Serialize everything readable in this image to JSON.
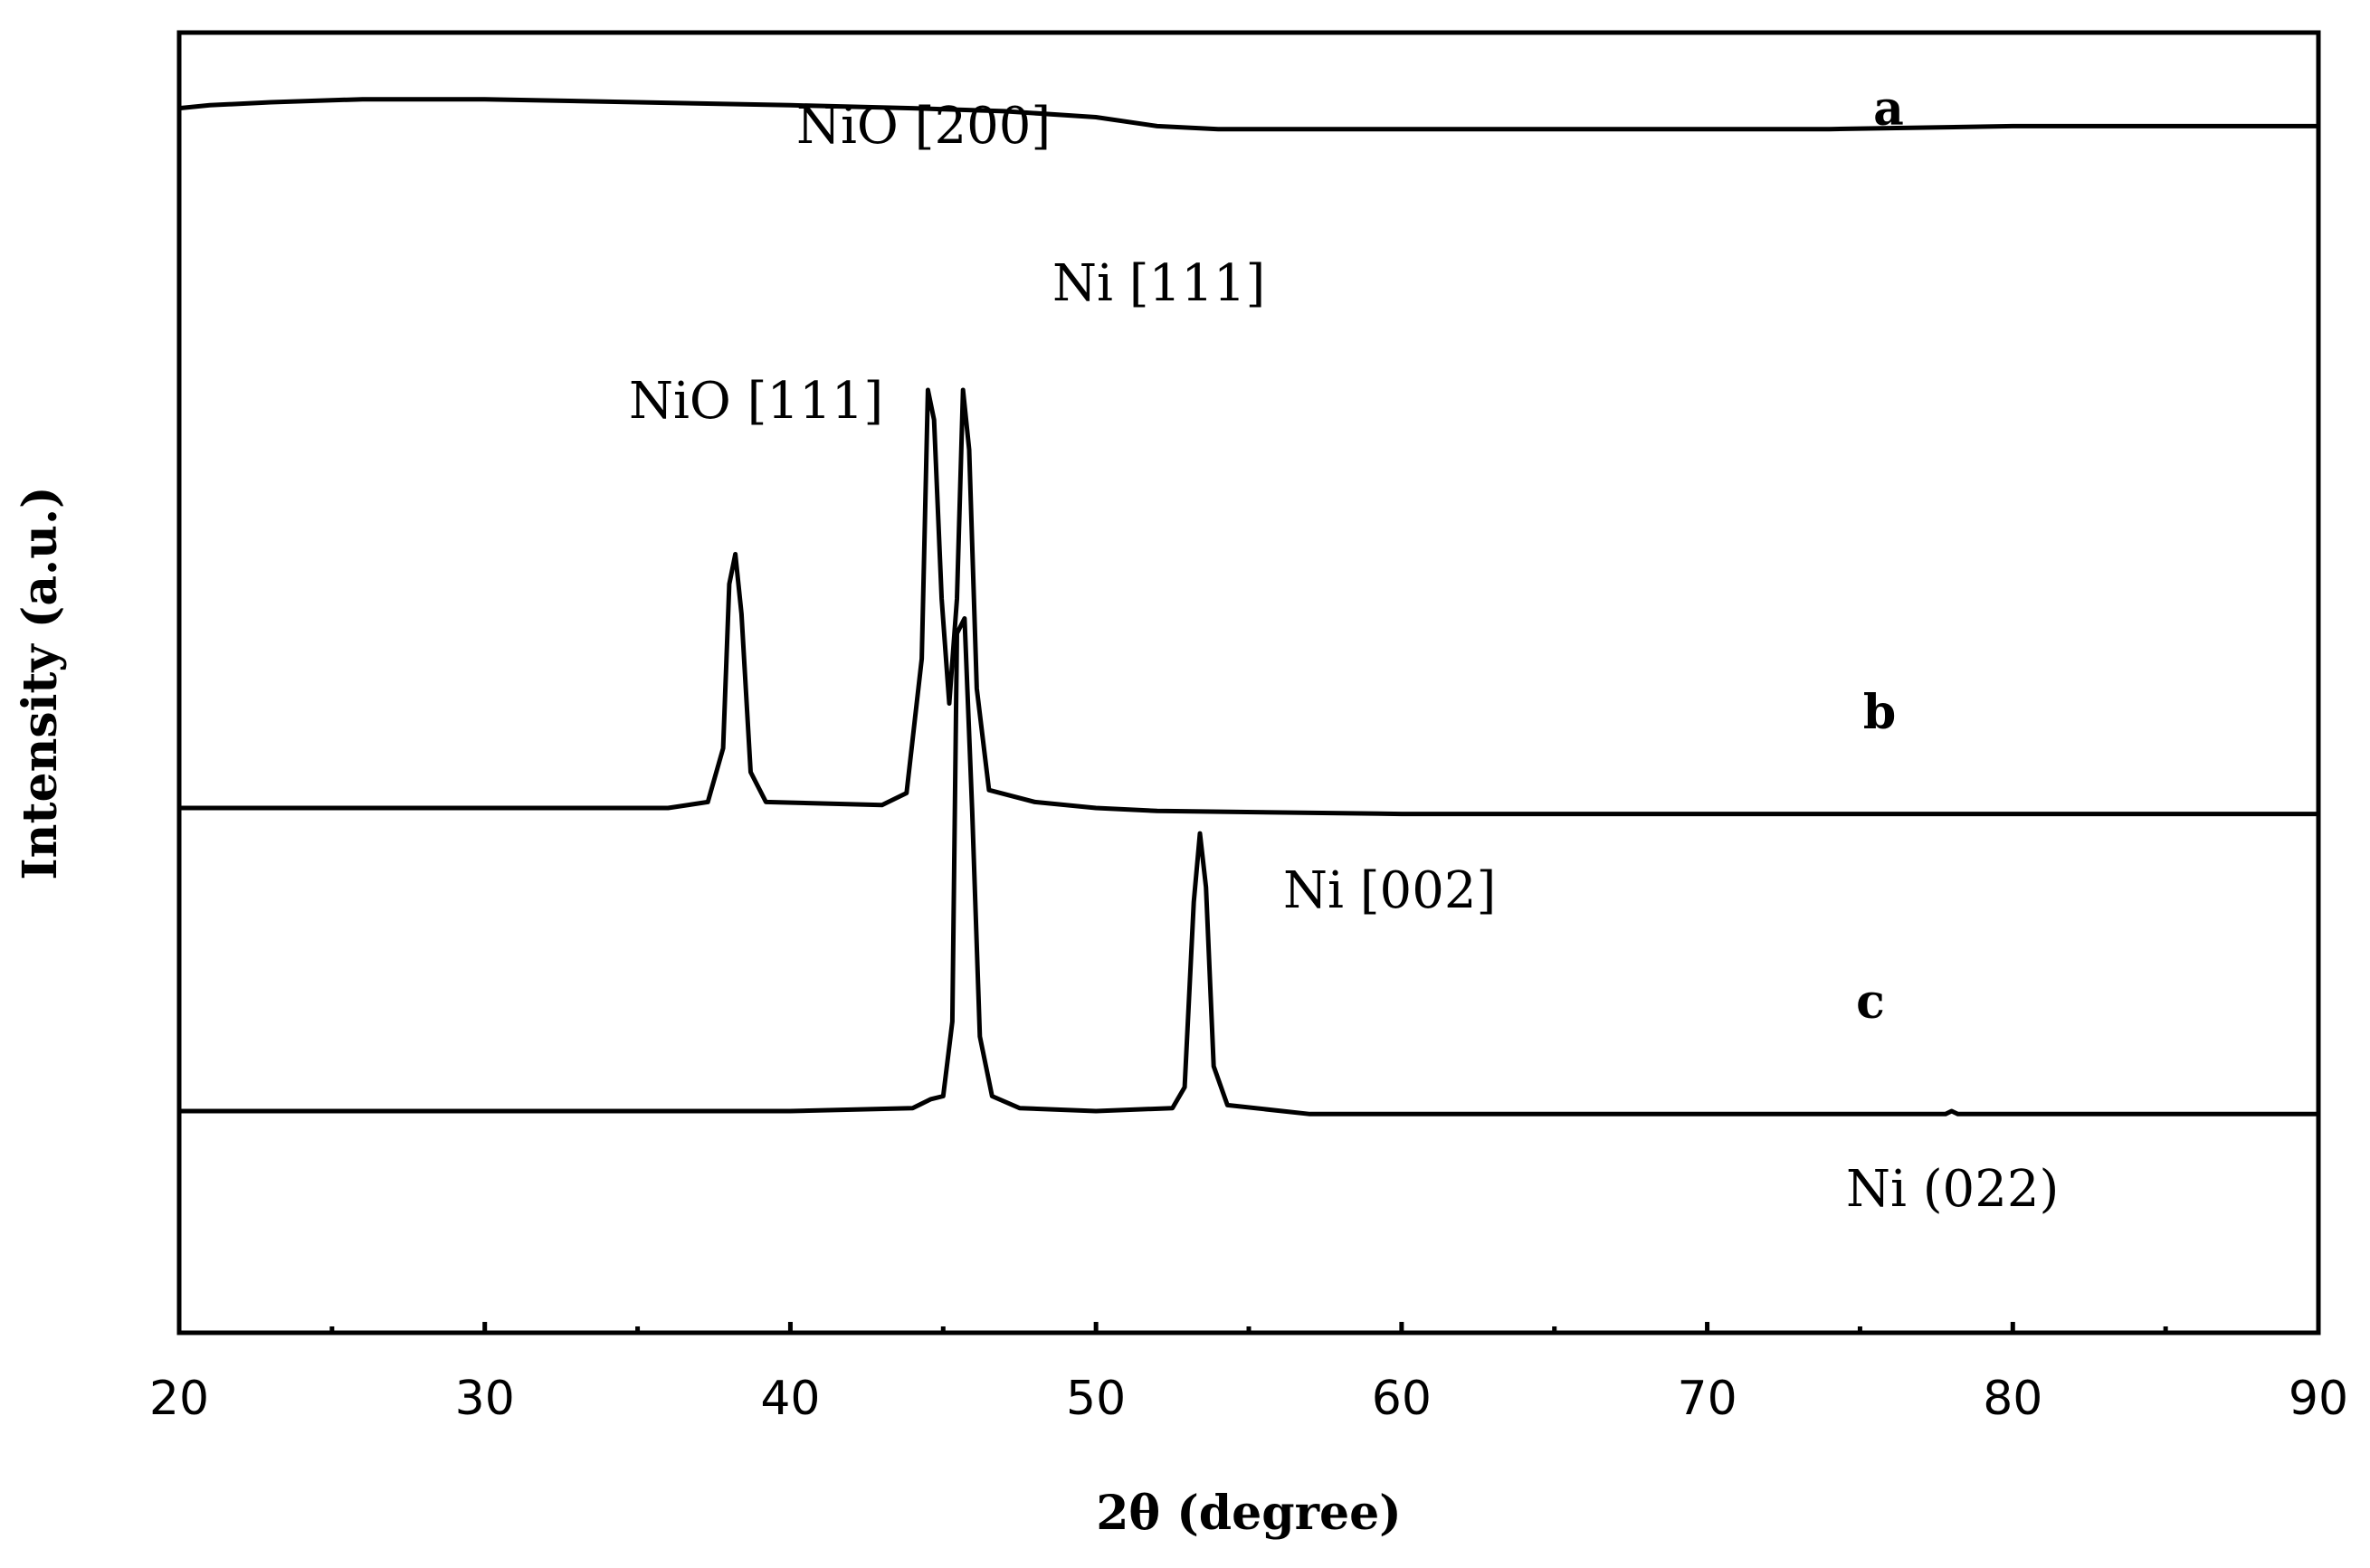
{
  "chart_data": {
    "type": "line",
    "xlabel": "2θ (degree)",
    "ylabel": "Intensity (a.u.)",
    "xlim": [
      20,
      90
    ],
    "x_ticks": [
      20,
      30,
      40,
      50,
      60,
      70,
      80,
      90
    ],
    "grid": false,
    "legend": "none",
    "series": [
      {
        "name": "a",
        "points": [
          [
            20,
            0.48
          ],
          [
            21,
            0.49
          ],
          [
            23,
            0.5
          ],
          [
            26,
            0.51
          ],
          [
            30,
            0.51
          ],
          [
            35,
            0.5
          ],
          [
            40,
            0.49
          ],
          [
            44,
            0.48
          ],
          [
            47,
            0.47
          ],
          [
            50,
            0.45
          ],
          [
            52,
            0.42
          ],
          [
            54,
            0.41
          ],
          [
            60,
            0.41
          ],
          [
            70,
            0.41
          ],
          [
            74,
            0.41
          ],
          [
            80,
            0.42
          ],
          [
            90,
            0.42
          ]
        ]
      },
      {
        "name": "b",
        "points": [
          [
            20,
            0.0
          ],
          [
            36,
            0.0
          ],
          [
            37.3,
            0.02
          ],
          [
            37.8,
            0.2
          ],
          [
            38.0,
            0.75
          ],
          [
            38.2,
            0.85
          ],
          [
            38.4,
            0.65
          ],
          [
            38.7,
            0.12
          ],
          [
            39.2,
            0.02
          ],
          [
            43,
            0.01
          ],
          [
            43.8,
            0.05
          ],
          [
            44.3,
            0.5
          ],
          [
            44.5,
            1.4
          ],
          [
            44.7,
            1.3
          ],
          [
            44.95,
            0.7
          ],
          [
            45.2,
            0.35
          ],
          [
            45.45,
            0.7
          ],
          [
            45.65,
            1.4
          ],
          [
            45.85,
            1.2
          ],
          [
            46.1,
            0.4
          ],
          [
            46.5,
            0.06
          ],
          [
            48,
            0.02
          ],
          [
            50,
            0.0
          ],
          [
            52,
            -0.01
          ],
          [
            60,
            -0.02
          ],
          [
            70,
            -0.02
          ],
          [
            80,
            -0.02
          ],
          [
            90,
            -0.02
          ]
        ]
      },
      {
        "name": "c",
        "points": [
          [
            20,
            0.0
          ],
          [
            40,
            0.0
          ],
          [
            44,
            0.01
          ],
          [
            44.6,
            0.04
          ],
          [
            45.0,
            0.05
          ],
          [
            45.3,
            0.3
          ],
          [
            45.45,
            1.6
          ],
          [
            45.7,
            1.65
          ],
          [
            45.95,
            1.0
          ],
          [
            46.2,
            0.25
          ],
          [
            46.6,
            0.05
          ],
          [
            47.5,
            0.01
          ],
          [
            50,
            0.0
          ],
          [
            52.5,
            0.01
          ],
          [
            52.9,
            0.08
          ],
          [
            53.2,
            0.7
          ],
          [
            53.4,
            0.93
          ],
          [
            53.6,
            0.75
          ],
          [
            53.85,
            0.15
          ],
          [
            54.3,
            0.02
          ],
          [
            57,
            -0.01
          ],
          [
            65,
            -0.01
          ],
          [
            77.8,
            -0.01
          ],
          [
            78.0,
            0.0
          ],
          [
            78.2,
            -0.01
          ],
          [
            90,
            -0.01
          ]
        ]
      }
    ],
    "series_labels": [
      "a",
      "b",
      "c"
    ],
    "annotations": [
      "NiO [200]",
      "Ni [111]",
      "NiO [111]",
      "Ni [002]",
      "Ni (022)"
    ]
  }
}
